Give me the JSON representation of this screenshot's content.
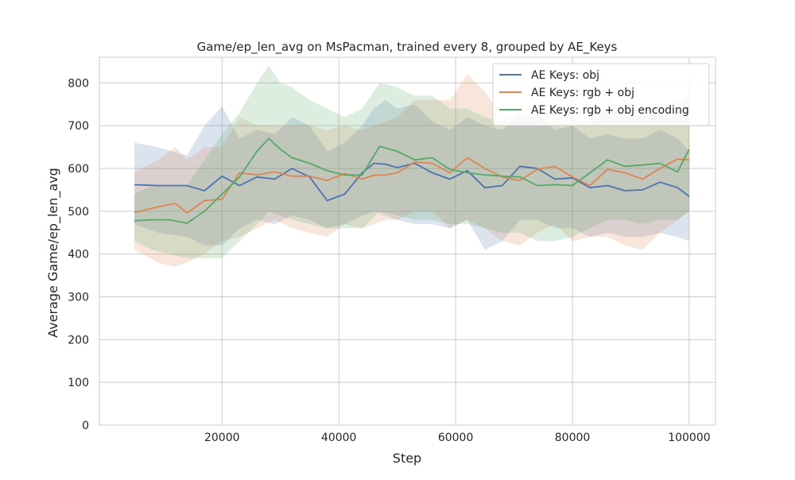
{
  "chart_data": {
    "type": "line",
    "title": "Game/ep_len_avg on MsPacman, trained every 8, grouped by AE_Keys",
    "xlabel": "Step",
    "ylabel": "Average Game/ep_len_avg",
    "xlim": [
      -1000,
      104500
    ],
    "ylim": [
      0,
      860
    ],
    "xticks": [
      20000,
      40000,
      60000,
      80000,
      100000
    ],
    "yticks": [
      0,
      100,
      200,
      300,
      400,
      500,
      600,
      700,
      800
    ],
    "grid": true,
    "legend_position": "top-right",
    "background": "#eaeaf2",
    "series": [
      {
        "name": "AE Keys: obj",
        "color": "#4c72b0",
        "x": [
          5000,
          9000,
          14000,
          17000,
          20000,
          23000,
          26000,
          29000,
          32000,
          35000,
          38000,
          41000,
          44000,
          46000,
          48000,
          50000,
          53000,
          56000,
          59000,
          62000,
          65000,
          68000,
          71000,
          74000,
          77000,
          80000,
          83000,
          86000,
          89000,
          92000,
          95000,
          98000,
          100000
        ],
        "y": [
          562,
          560,
          560,
          548,
          582,
          560,
          580,
          575,
          600,
          580,
          525,
          540,
          590,
          612,
          610,
          602,
          612,
          590,
          575,
          595,
          555,
          560,
          605,
          600,
          575,
          578,
          555,
          560,
          548,
          550,
          568,
          555,
          535
        ],
        "low": [
          470,
          450,
          440,
          420,
          420,
          460,
          480,
          470,
          490,
          480,
          460,
          470,
          490,
          500,
          490,
          480,
          470,
          470,
          460,
          480,
          410,
          430,
          480,
          480,
          460,
          460,
          440,
          450,
          440,
          440,
          450,
          440,
          430
        ],
        "high": [
          660,
          650,
          630,
          700,
          745,
          670,
          690,
          680,
          720,
          700,
          640,
          660,
          700,
          740,
          760,
          740,
          750,
          710,
          690,
          720,
          700,
          690,
          730,
          730,
          690,
          700,
          670,
          680,
          670,
          670,
          690,
          670,
          640
        ]
      },
      {
        "name": "AE Keys: rgb + obj",
        "color": "#dd8452",
        "x": [
          5000,
          9000,
          12000,
          14000,
          17000,
          20000,
          23000,
          26000,
          29000,
          32000,
          35000,
          38000,
          41000,
          44000,
          46000,
          48000,
          50000,
          53000,
          56000,
          59000,
          62000,
          65000,
          68000,
          71000,
          74000,
          77000,
          80000,
          83000,
          86000,
          89000,
          92000,
          95000,
          98000,
          100000
        ],
        "y": [
          497,
          510,
          518,
          496,
          525,
          528,
          590,
          585,
          592,
          582,
          582,
          572,
          588,
          575,
          584,
          585,
          590,
          615,
          612,
          590,
          625,
          600,
          580,
          572,
          598,
          605,
          580,
          560,
          598,
          590,
          575,
          600,
          622,
          620
        ],
        "low": [
          410,
          380,
          370,
          380,
          400,
          430,
          440,
          460,
          480,
          460,
          450,
          440,
          470,
          460,
          470,
          480,
          480,
          500,
          500,
          460,
          480,
          460,
          430,
          420,
          450,
          470,
          430,
          440,
          440,
          420,
          410,
          450,
          480,
          500
        ],
        "high": [
          590,
          620,
          650,
          620,
          650,
          650,
          720,
          700,
          700,
          700,
          700,
          690,
          700,
          690,
          700,
          710,
          720,
          760,
          760,
          760,
          820,
          780,
          720,
          720,
          740,
          730,
          720,
          700,
          740,
          760,
          720,
          740,
          760,
          760
        ]
      },
      {
        "name": "AE Keys: rgb + obj encoding",
        "color": "#55a868",
        "x": [
          5000,
          8000,
          11000,
          14000,
          17000,
          20000,
          23000,
          26000,
          28000,
          30000,
          32000,
          35000,
          38000,
          41000,
          44000,
          47000,
          50000,
          53000,
          56000,
          59000,
          62000,
          65000,
          68000,
          71000,
          74000,
          77000,
          80000,
          83000,
          86000,
          89000,
          92000,
          95000,
          98000,
          100000
        ],
        "y": [
          478,
          480,
          480,
          472,
          500,
          540,
          580,
          640,
          670,
          645,
          625,
          612,
          595,
          585,
          585,
          652,
          640,
          620,
          625,
          598,
          590,
          585,
          582,
          580,
          560,
          562,
          560,
          590,
          620,
          605,
          608,
          612,
          592,
          645
        ],
        "low": [
          430,
          410,
          400,
          390,
          390,
          390,
          430,
          470,
          500,
          490,
          480,
          470,
          460,
          460,
          460,
          500,
          490,
          480,
          480,
          470,
          470,
          460,
          450,
          450,
          430,
          430,
          440,
          460,
          480,
          480,
          470,
          480,
          480,
          500
        ],
        "high": [
          540,
          560,
          560,
          560,
          620,
          680,
          730,
          800,
          840,
          800,
          790,
          760,
          740,
          720,
          740,
          800,
          790,
          770,
          770,
          740,
          740,
          720,
          710,
          710,
          700,
          700,
          700,
          720,
          760,
          740,
          740,
          740,
          720,
          780
        ]
      }
    ]
  }
}
